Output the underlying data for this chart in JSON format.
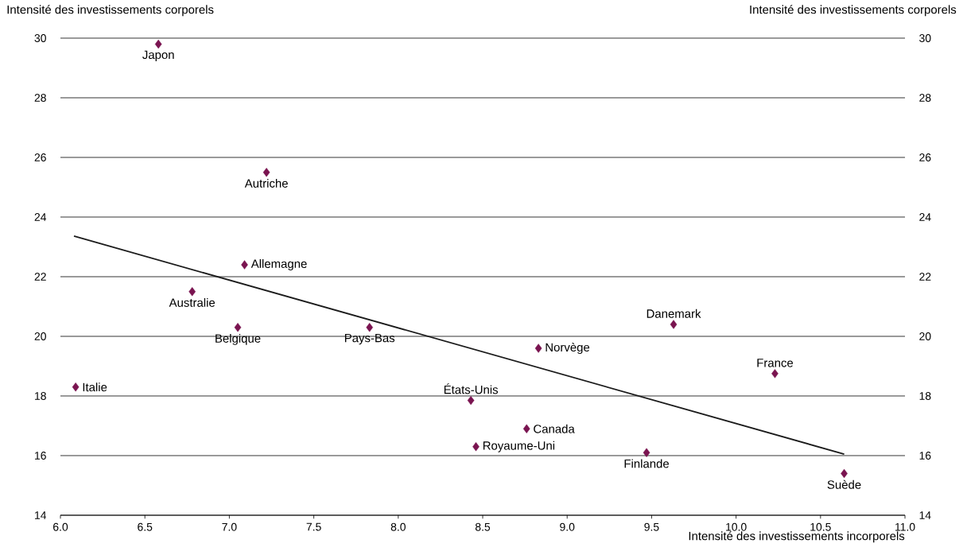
{
  "chart_data": {
    "type": "scatter",
    "xlabel": "Intensité des investissements incorporels",
    "ylabel": "Intensité des investissements corporels",
    "y2label": "Intensité des investissements corporels",
    "xlim": [
      6,
      11
    ],
    "xticks": [
      {
        "value": 6,
        "label": "6.0"
      },
      {
        "value": 6.5,
        "label": "6.5"
      },
      {
        "value": 7,
        "label": "7.0"
      },
      {
        "value": 7.5,
        "label": "7.5"
      },
      {
        "value": 8,
        "label": "8.0"
      },
      {
        "value": 8.5,
        "label": "8.5"
      },
      {
        "value": 9,
        "label": "9.0"
      },
      {
        "value": 9.5,
        "label": "9.5"
      },
      {
        "value": 10,
        "label": "10.0"
      },
      {
        "value": 10.5,
        "label": "10.5"
      },
      {
        "value": 11,
        "label": "11.0"
      }
    ],
    "ylim": [
      14,
      30
    ],
    "yticks": [
      14,
      16,
      18,
      20,
      22,
      24,
      26,
      28,
      30
    ],
    "y2lim": [
      14,
      30
    ],
    "y2ticks": [
      14,
      16,
      18,
      20,
      22,
      24,
      26,
      28,
      30
    ],
    "grid": "y",
    "marker": "diamond",
    "color": "#7a1450",
    "series": [
      {
        "name": "Japon",
        "x": [
          6.58
        ],
        "values": [
          29.8
        ]
      },
      {
        "name": "Autriche",
        "x": [
          7.22
        ],
        "values": [
          25.5
        ]
      },
      {
        "name": "Allemagne",
        "x": [
          7.09
        ],
        "values": [
          22.4
        ]
      },
      {
        "name": "Australie",
        "x": [
          6.78
        ],
        "values": [
          21.5
        ]
      },
      {
        "name": "Belgique",
        "x": [
          7.05
        ],
        "values": [
          20.3
        ]
      },
      {
        "name": "Pays-Bas",
        "x": [
          7.83
        ],
        "values": [
          20.3
        ]
      },
      {
        "name": "Italie",
        "x": [
          6.09
        ],
        "values": [
          18.3
        ]
      },
      {
        "name": "États-Unis",
        "x": [
          8.43
        ],
        "values": [
          17.85
        ]
      },
      {
        "name": "Royaume-Uni",
        "x": [
          8.46
        ],
        "values": [
          16.3
        ]
      },
      {
        "name": "Canada",
        "x": [
          8.76
        ],
        "values": [
          16.9
        ]
      },
      {
        "name": "Norvège",
        "x": [
          8.83
        ],
        "values": [
          19.6
        ]
      },
      {
        "name": "Danemark",
        "x": [
          9.63
        ],
        "values": [
          20.4
        ]
      },
      {
        "name": "France",
        "x": [
          10.23
        ],
        "values": [
          18.75
        ]
      },
      {
        "name": "Finlande",
        "x": [
          9.47
        ],
        "values": [
          16.1
        ]
      },
      {
        "name": "Suède",
        "x": [
          10.64
        ],
        "values": [
          15.4
        ]
      },
      {
        "type": "line",
        "color": "#1a1a1a",
        "marker": "none",
        "x": [
          6.08,
          10.64
        ],
        "values": [
          23.36,
          16.05
        ]
      }
    ]
  }
}
